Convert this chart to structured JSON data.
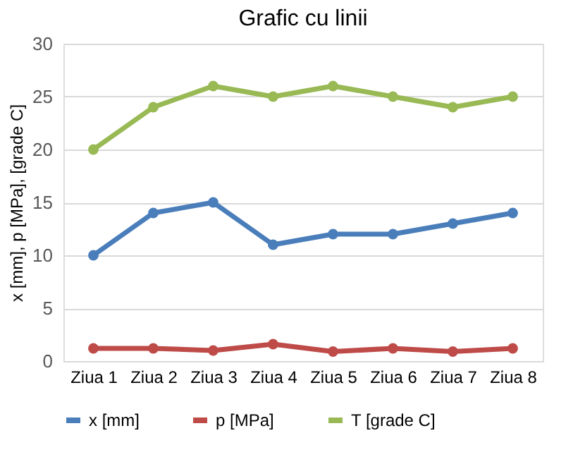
{
  "chart_data": {
    "type": "line",
    "title": "Grafic cu linii",
    "ylabel": "x [mm], p [MPa],  [grade C]",
    "categories": [
      "Ziua 1",
      "Ziua 2",
      "Ziua 3",
      "Ziua 4",
      "Ziua 5",
      "Ziua 6",
      "Ziua 7",
      "Ziua 8"
    ],
    "series": [
      {
        "name": "x [mm]",
        "color": "#4a7ebb",
        "values": [
          10,
          14,
          15,
          11,
          12,
          12,
          13,
          14
        ]
      },
      {
        "name": "p [MPa]",
        "color": "#be4b48",
        "values": [
          1.2,
          1.2,
          1.0,
          1.6,
          0.9,
          1.2,
          0.9,
          1.2
        ]
      },
      {
        "name": "T [grade C]",
        "color": "#98b954",
        "values": [
          20,
          24,
          26,
          25,
          26,
          25,
          24,
          25
        ]
      }
    ],
    "ylim": [
      0,
      30
    ],
    "yticks": [
      0,
      5,
      10,
      15,
      20,
      25,
      30
    ],
    "grid": "y",
    "legend": "bottom",
    "marker": "circle",
    "line_style": "solid"
  }
}
